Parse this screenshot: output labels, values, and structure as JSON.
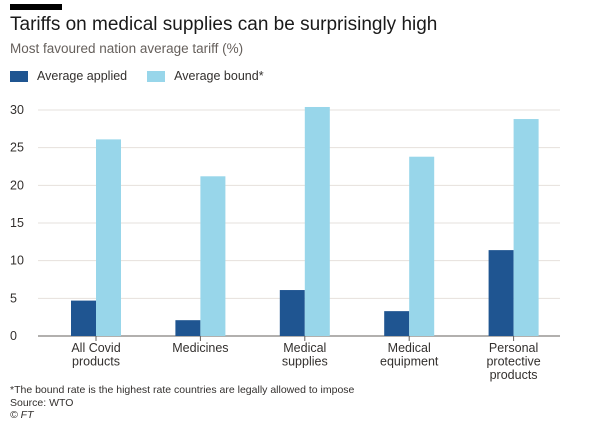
{
  "title": "Tariffs on medical supplies can be surprisingly high",
  "subtitle": "Most favoured nation average tariff (%)",
  "footnote": "*The bound rate is the highest rate countries are legally allowed to impose",
  "source": "Source: WTO",
  "copyright": "© FT",
  "colors": {
    "applied": "#1f5591",
    "bound": "#98d6ea",
    "grid": "#e6e1dc",
    "axis": "#66605c"
  },
  "chart_data": {
    "type": "bar",
    "categories": [
      [
        "All Covid",
        "products"
      ],
      [
        "Medicines"
      ],
      [
        "Medical",
        "supplies"
      ],
      [
        "Medical",
        "equipment"
      ],
      [
        "Personal",
        "protective",
        "products"
      ]
    ],
    "series": [
      {
        "name": "Average applied",
        "values": [
          4.7,
          2.1,
          6.1,
          3.3,
          11.4
        ]
      },
      {
        "name": "Average bound*",
        "values": [
          26.1,
          21.2,
          30.4,
          23.8,
          28.8
        ]
      }
    ],
    "ylim": [
      0,
      30
    ],
    "yticks": [
      0,
      5,
      10,
      15,
      20,
      25,
      30
    ],
    "grid": true,
    "legend": "top-left"
  }
}
